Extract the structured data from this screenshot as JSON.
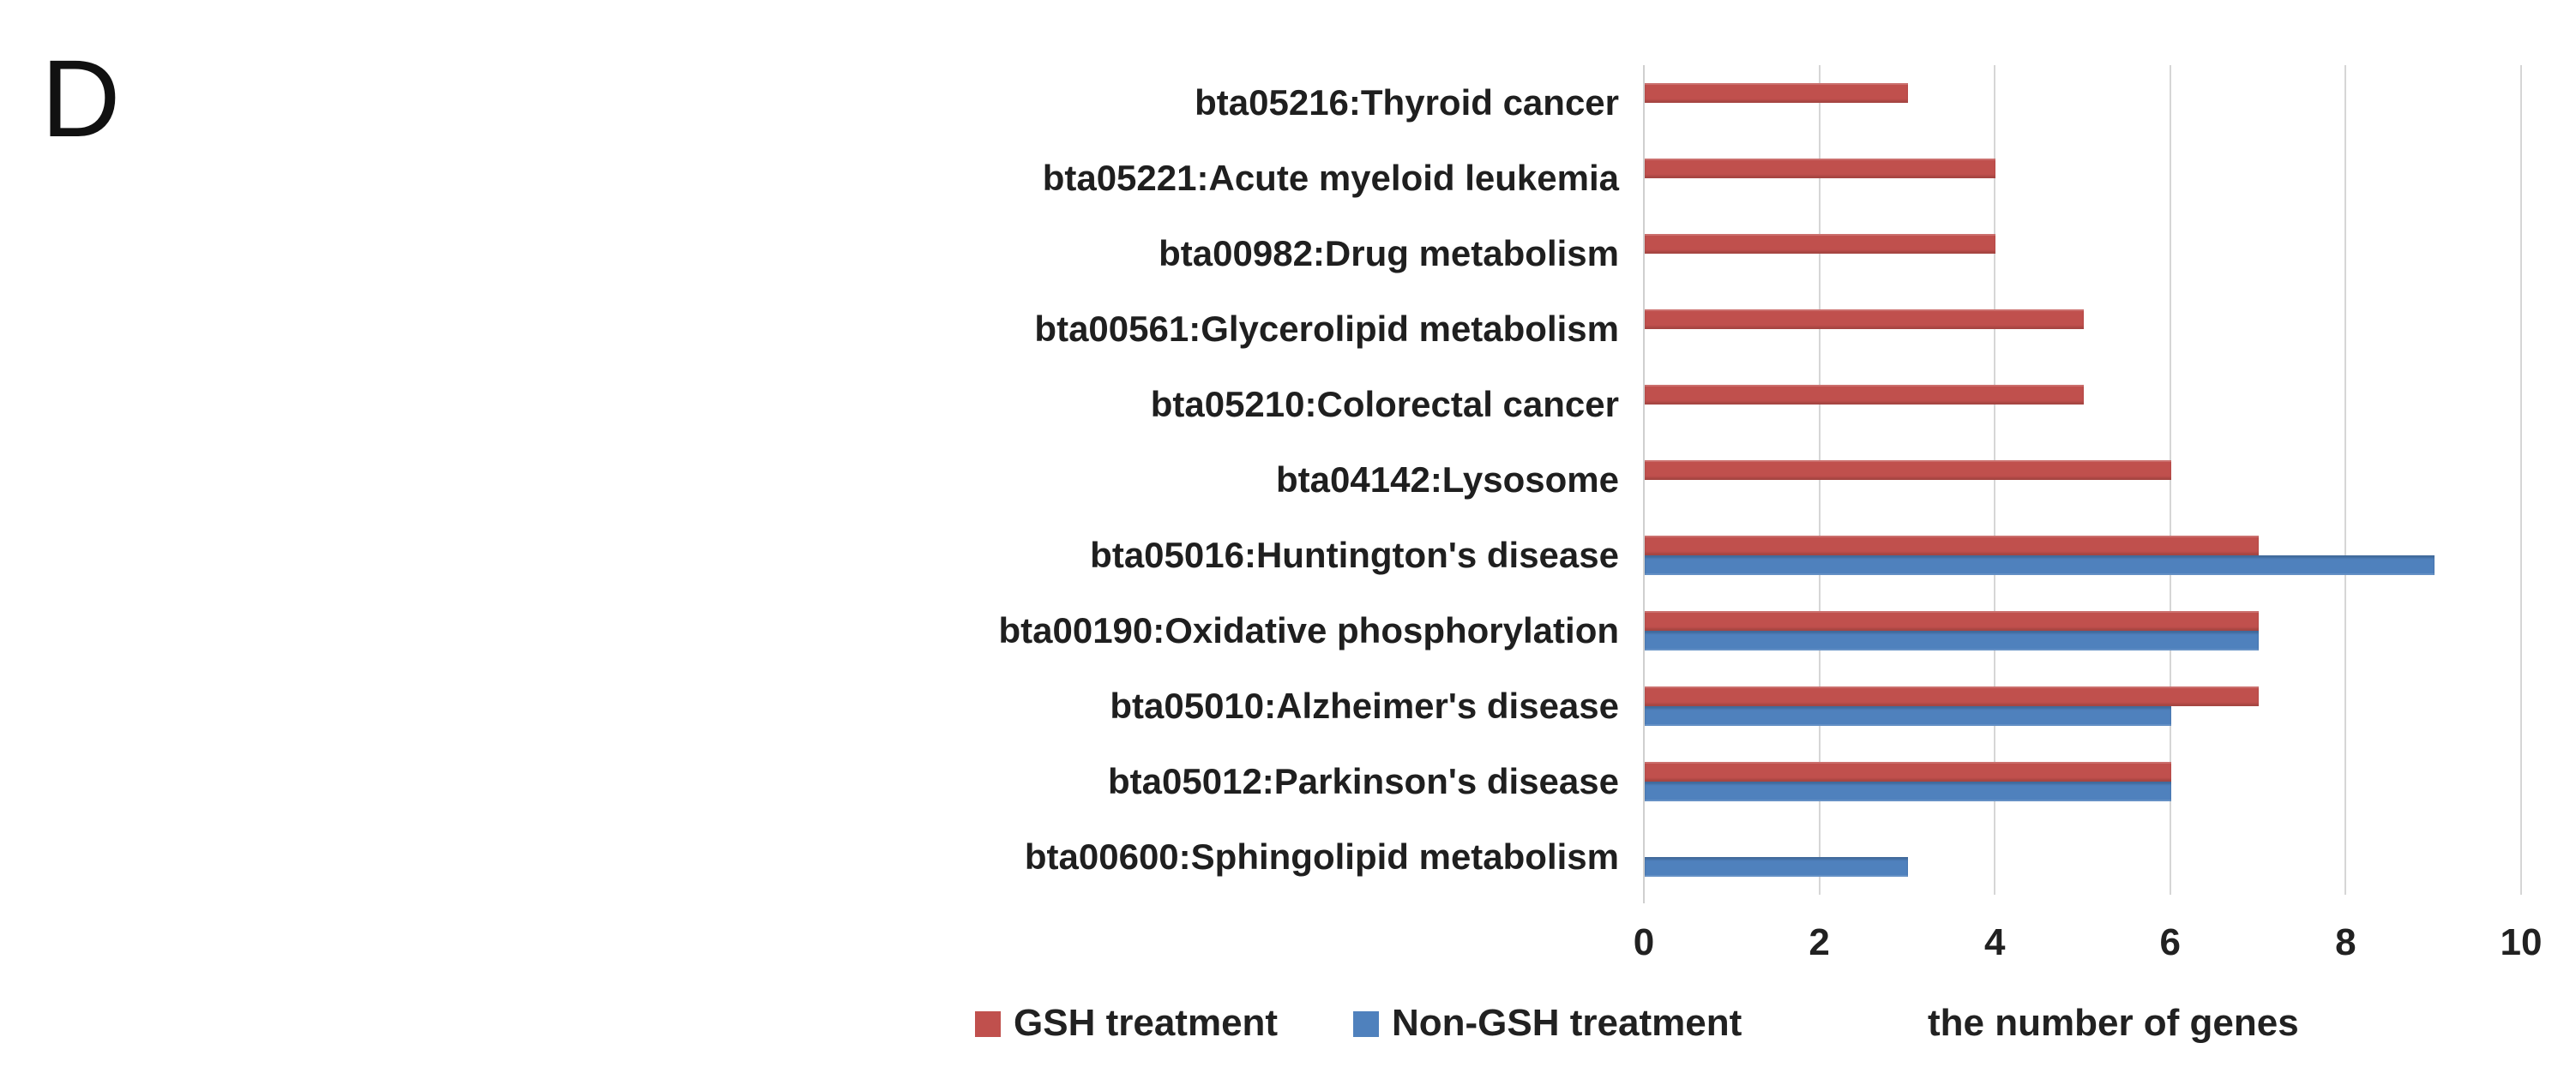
{
  "panel_label": "D",
  "chart_data": {
    "type": "bar",
    "orientation": "horizontal",
    "title": "",
    "xlabel": "the number of genes",
    "ylabel": "",
    "xlim": [
      0,
      10
    ],
    "xticks": [
      "0",
      "2",
      "4",
      "6",
      "8",
      "10"
    ],
    "grid": true,
    "legend_position": "bottom",
    "categories": [
      "bta05216:Thyroid cancer",
      "bta05221:Acute myeloid leukemia",
      "bta00982:Drug metabolism",
      "bta00561:Glycerolipid metabolism",
      "bta05210:Colorectal cancer",
      "bta04142:Lysosome",
      "bta05016:Huntington's disease",
      "bta00190:Oxidative phosphorylation",
      "bta05010:Alzheimer's disease",
      "bta05012:Parkinson's disease",
      "bta00600:Sphingolipid metabolism"
    ],
    "series": [
      {
        "name": "GSH treatment",
        "color": "#C0504D",
        "values": [
          3,
          4,
          4,
          5,
          5,
          6,
          7,
          7,
          7,
          6,
          0
        ]
      },
      {
        "name": "Non-GSH treatment",
        "color": "#4F81BD",
        "values": [
          0,
          0,
          0,
          0,
          0,
          0,
          9,
          7,
          6,
          6,
          3
        ]
      }
    ]
  }
}
